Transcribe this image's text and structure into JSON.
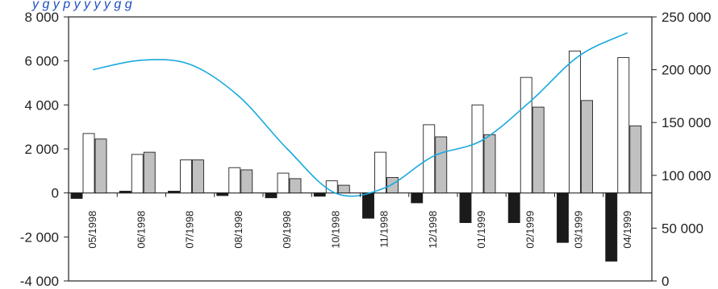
{
  "page": {
    "title_fragment": "y g y p y y y y g g"
  },
  "chart_data": {
    "type": "bar",
    "categories": [
      "05/1998",
      "06/1998",
      "07/1998",
      "08/1998",
      "09/1998",
      "10/1998",
      "11/1998",
      "12/1998",
      "01/1999",
      "02/1999",
      "03/1999",
      "04/1999"
    ],
    "series": [
      {
        "axis": "left",
        "kind": "bar",
        "color": "#1a1a1a",
        "values": [
          -250,
          80,
          80,
          -120,
          -220,
          -150,
          -1150,
          -450,
          -1350,
          -1350,
          -2250,
          -3100
        ]
      },
      {
        "axis": "left",
        "kind": "bar",
        "color": "#ffffff",
        "values": [
          2700,
          1750,
          1500,
          1150,
          900,
          550,
          1850,
          3100,
          4000,
          5250,
          6450,
          6150
        ]
      },
      {
        "axis": "left",
        "kind": "bar",
        "color": "#c0c0c0",
        "values": [
          2450,
          1850,
          1500,
          1050,
          650,
          350,
          700,
          2550,
          2650,
          3900,
          4200,
          3050
        ]
      },
      {
        "axis": "right",
        "kind": "line",
        "color": "#19a9e0",
        "values": [
          200000,
          209000,
          205000,
          175000,
          125000,
          83000,
          88000,
          118000,
          133000,
          170000,
          213000,
          235000
        ]
      }
    ],
    "ylim_left": [
      -4000,
      8000
    ],
    "ylim_right": [
      0,
      250000
    ],
    "yticks_left": [
      "-4 000",
      "-2 000",
      "0",
      "2 000",
      "4 000",
      "6 000",
      "8 000"
    ],
    "yticks_left_values": [
      -4000,
      -2000,
      0,
      2000,
      4000,
      6000,
      8000
    ],
    "yticks_right": [
      "0",
      "50 000",
      "100 000",
      "150 000",
      "200 000",
      "250 000"
    ],
    "yticks_right_values": [
      0,
      50000,
      100000,
      150000,
      200000,
      250000
    ],
    "grid": false,
    "legend": "none"
  }
}
